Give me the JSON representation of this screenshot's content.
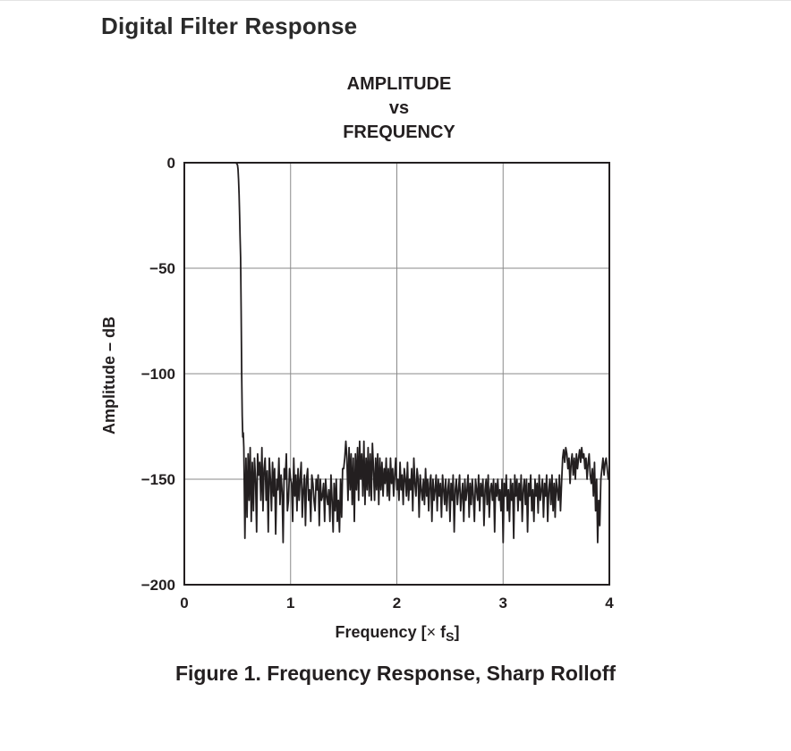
{
  "page": {
    "heading": "Digital Filter Response",
    "caption": "Figure 1. Frequency Response, Sharp Rolloff"
  },
  "chart_data": {
    "type": "line",
    "title_lines": [
      "AMPLITUDE",
      "vs",
      "FREQUENCY"
    ],
    "xlabel": "Frequency [× fS]",
    "xlabel_parts": {
      "text": "Frequency [",
      "times": "×",
      "f": " f",
      "sub": "S",
      "close": "]"
    },
    "ylabel": "Amplitude – dB",
    "xlim": [
      0,
      4
    ],
    "ylim": [
      -200,
      0
    ],
    "xticks": [
      0,
      1,
      2,
      3,
      4
    ],
    "xtick_labels": [
      "0",
      "1",
      "2",
      "3",
      "4"
    ],
    "yticks": [
      0,
      -50,
      -100,
      -150,
      -200
    ],
    "ytick_labels": [
      "0",
      "−50",
      "−100",
      "−150",
      "−200"
    ],
    "grid": true,
    "line_color": "#231f20",
    "series": [
      {
        "x": [
          0.0,
          0.1,
          0.2,
          0.3,
          0.4,
          0.46,
          0.48,
          0.49,
          0.5,
          0.505,
          0.51,
          0.515,
          0.52,
          0.525,
          0.53,
          0.535,
          0.54,
          0.545,
          0.55,
          0.555,
          0.56,
          0.57,
          0.58,
          0.59,
          0.6,
          0.61,
          0.62,
          0.63,
          0.64,
          0.65,
          0.66,
          0.67,
          0.68,
          0.69,
          0.7,
          0.71,
          0.72,
          0.73,
          0.74,
          0.75,
          0.76,
          0.77,
          0.78,
          0.79,
          0.8,
          0.81,
          0.82,
          0.83,
          0.84,
          0.85,
          0.86,
          0.87,
          0.88,
          0.89,
          0.9,
          0.91,
          0.92,
          0.93,
          0.94,
          0.95,
          0.96,
          0.97,
          0.98,
          0.99,
          1.0,
          1.01,
          1.02,
          1.03,
          1.04,
          1.05,
          1.06,
          1.07,
          1.08,
          1.09,
          1.1,
          1.11,
          1.12,
          1.13,
          1.14,
          1.15,
          1.16,
          1.17,
          1.18,
          1.19,
          1.2,
          1.21,
          1.22,
          1.23,
          1.24,
          1.25,
          1.26,
          1.27,
          1.28,
          1.29,
          1.3,
          1.31,
          1.32,
          1.33,
          1.34,
          1.35,
          1.36,
          1.37,
          1.38,
          1.39,
          1.4,
          1.41,
          1.42,
          1.43,
          1.44,
          1.45,
          1.46,
          1.47,
          1.48,
          1.49,
          1.5,
          1.51,
          1.52,
          1.53,
          1.54,
          1.55,
          1.56,
          1.57,
          1.58,
          1.59,
          1.6,
          1.61,
          1.62,
          1.63,
          1.64,
          1.65,
          1.66,
          1.67,
          1.68,
          1.69,
          1.7,
          1.71,
          1.72,
          1.73,
          1.74,
          1.75,
          1.76,
          1.77,
          1.78,
          1.79,
          1.8,
          1.81,
          1.82,
          1.83,
          1.84,
          1.85,
          1.86,
          1.87,
          1.88,
          1.89,
          1.9,
          1.91,
          1.92,
          1.93,
          1.94,
          1.95,
          1.96,
          1.97,
          1.98,
          1.99,
          2.0,
          2.01,
          2.02,
          2.03,
          2.04,
          2.05,
          2.06,
          2.07,
          2.08,
          2.09,
          2.1,
          2.11,
          2.12,
          2.13,
          2.14,
          2.15,
          2.16,
          2.17,
          2.18,
          2.19,
          2.2,
          2.21,
          2.22,
          2.23,
          2.24,
          2.25,
          2.26,
          2.27,
          2.28,
          2.29,
          2.3,
          2.31,
          2.32,
          2.33,
          2.34,
          2.35,
          2.36,
          2.37,
          2.38,
          2.39,
          2.4,
          2.41,
          2.42,
          2.43,
          2.44,
          2.45,
          2.46,
          2.47,
          2.48,
          2.49,
          2.5,
          2.51,
          2.52,
          2.53,
          2.54,
          2.55,
          2.56,
          2.57,
          2.58,
          2.59,
          2.6,
          2.61,
          2.62,
          2.63,
          2.64,
          2.65,
          2.66,
          2.67,
          2.68,
          2.69,
          2.7,
          2.71,
          2.72,
          2.73,
          2.74,
          2.75,
          2.76,
          2.77,
          2.78,
          2.79,
          2.8,
          2.81,
          2.82,
          2.83,
          2.84,
          2.85,
          2.86,
          2.87,
          2.88,
          2.89,
          2.9,
          2.91,
          2.92,
          2.93,
          2.94,
          2.95,
          2.96,
          2.97,
          2.98,
          2.99,
          3.0,
          3.01,
          3.02,
          3.03,
          3.04,
          3.05,
          3.06,
          3.07,
          3.08,
          3.09,
          3.1,
          3.11,
          3.12,
          3.13,
          3.14,
          3.15,
          3.16,
          3.17,
          3.18,
          3.19,
          3.2,
          3.21,
          3.22,
          3.23,
          3.24,
          3.25,
          3.26,
          3.27,
          3.28,
          3.29,
          3.3,
          3.31,
          3.32,
          3.33,
          3.34,
          3.35,
          3.36,
          3.37,
          3.38,
          3.39,
          3.4,
          3.41,
          3.42,
          3.43,
          3.44,
          3.45,
          3.46,
          3.47,
          3.48,
          3.49,
          3.5,
          3.51,
          3.52,
          3.53,
          3.54,
          3.55,
          3.56,
          3.57,
          3.58,
          3.59,
          3.6,
          3.61,
          3.62,
          3.63,
          3.64,
          3.65,
          3.66,
          3.67,
          3.68,
          3.69,
          3.7,
          3.71,
          3.72,
          3.73,
          3.74,
          3.75,
          3.76,
          3.77,
          3.78,
          3.79,
          3.8,
          3.81,
          3.82,
          3.83,
          3.84,
          3.85,
          3.86,
          3.87,
          3.88,
          3.89,
          3.9,
          3.91,
          3.92,
          3.93,
          3.94,
          3.95,
          3.96,
          3.97,
          3.98,
          3.99,
          4.0
        ],
        "y": [
          0,
          0,
          0,
          0,
          0,
          0,
          0,
          -0.2,
          -1,
          -3,
          -8,
          -15,
          -25,
          -35,
          -45,
          -70,
          -100,
          -120,
          -130,
          -128,
          -135,
          -178,
          -140,
          -168,
          -138,
          -160,
          -135,
          -170,
          -142,
          -165,
          -140,
          -150,
          -175,
          -138,
          -148,
          -142,
          -160,
          -135,
          -165,
          -145,
          -140,
          -160,
          -146,
          -175,
          -140,
          -150,
          -165,
          -142,
          -158,
          -145,
          -176,
          -150,
          -155,
          -140,
          -162,
          -148,
          -156,
          -180,
          -145,
          -150,
          -138,
          -165,
          -160,
          -145,
          -150,
          -152,
          -170,
          -140,
          -158,
          -148,
          -165,
          -145,
          -160,
          -150,
          -142,
          -168,
          -155,
          -148,
          -172,
          -150,
          -145,
          -160,
          -155,
          -170,
          -148,
          -152,
          -160,
          -165,
          -150,
          -155,
          -148,
          -172,
          -150,
          -160,
          -158,
          -152,
          -170,
          -150,
          -158,
          -162,
          -155,
          -170,
          -148,
          -160,
          -175,
          -152,
          -165,
          -150,
          -170,
          -160,
          -175,
          -150,
          -168,
          -145,
          -145,
          -140,
          -132,
          -140,
          -160,
          -135,
          -155,
          -138,
          -162,
          -140,
          -170,
          -138,
          -155,
          -135,
          -160,
          -132,
          -150,
          -138,
          -158,
          -132,
          -162,
          -140,
          -155,
          -135,
          -158,
          -138,
          -160,
          -133,
          -145,
          -160,
          -140,
          -155,
          -138,
          -162,
          -140,
          -155,
          -142,
          -158,
          -145,
          -152,
          -140,
          -158,
          -145,
          -160,
          -140,
          -152,
          -145,
          -158,
          -148,
          -140,
          -155,
          -150,
          -160,
          -142,
          -155,
          -148,
          -162,
          -145,
          -150,
          -158,
          -142,
          -160,
          -150,
          -155,
          -145,
          -165,
          -140,
          -152,
          -158,
          -145,
          -150,
          -168,
          -148,
          -155,
          -160,
          -150,
          -162,
          -145,
          -158,
          -150,
          -165,
          -152,
          -148,
          -170,
          -150,
          -160,
          -155,
          -148,
          -165,
          -150,
          -158,
          -152,
          -168,
          -148,
          -155,
          -162,
          -150,
          -165,
          -155,
          -150,
          -170,
          -152,
          -160,
          -148,
          -175,
          -155,
          -150,
          -162,
          -155,
          -148,
          -165,
          -158,
          -152,
          -170,
          -150,
          -160,
          -155,
          -148,
          -168,
          -152,
          -162,
          -150,
          -158,
          -170,
          -150,
          -155,
          -160,
          -148,
          -165,
          -152,
          -158,
          -150,
          -172,
          -155,
          -150,
          -162,
          -148,
          -168,
          -155,
          -152,
          -160,
          -150,
          -175,
          -152,
          -158,
          -150,
          -160,
          -155,
          -165,
          -150,
          -180,
          -152,
          -158,
          -148,
          -165,
          -155,
          -170,
          -150,
          -160,
          -152,
          -178,
          -148,
          -158,
          -150,
          -165,
          -152,
          -160,
          -148,
          -170,
          -155,
          -150,
          -162,
          -150,
          -175,
          -152,
          -158,
          -148,
          -165,
          -155,
          -170,
          -150,
          -158,
          -152,
          -166,
          -148,
          -160,
          -155,
          -150,
          -168,
          -152,
          -158,
          -148,
          -170,
          -155,
          -150,
          -162,
          -148,
          -165,
          -152,
          -168,
          -150,
          -155,
          -160,
          -148,
          -165,
          -152,
          -140,
          -136,
          -142,
          -135,
          -138,
          -145,
          -140,
          -152,
          -142,
          -138,
          -148,
          -140,
          -150,
          -138,
          -145,
          -140,
          -136,
          -142,
          -135,
          -140,
          -138,
          -145,
          -140,
          -150,
          -142,
          -138,
          -148,
          -152,
          -145,
          -158,
          -142,
          -165,
          -150,
          -180,
          -160,
          -172,
          -150,
          -145,
          -140,
          -148,
          -142,
          -140,
          -145,
          -150,
          -148
        ]
      }
    ]
  }
}
